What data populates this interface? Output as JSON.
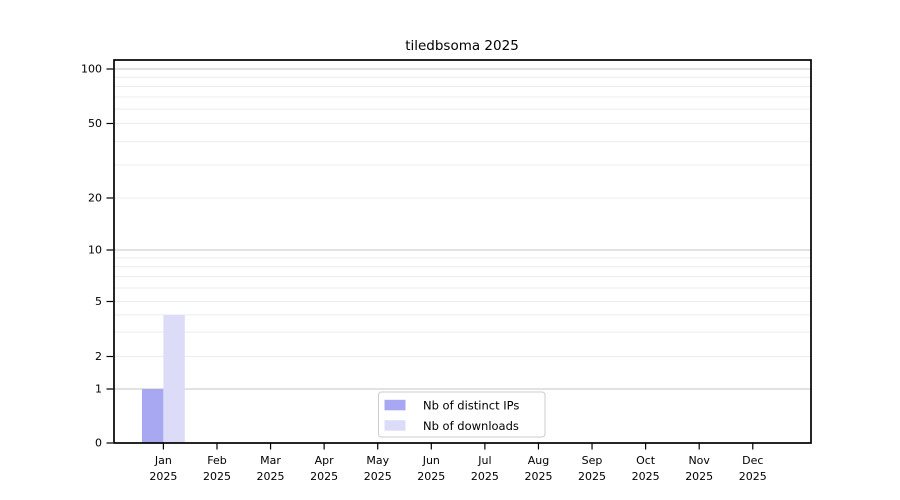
{
  "chart_data": {
    "type": "bar",
    "title": "tiledbsoma 2025",
    "categories": [
      "Jan 2025",
      "Feb 2025",
      "Mar 2025",
      "Apr 2025",
      "May 2025",
      "Jun 2025",
      "Jul 2025",
      "Aug 2025",
      "Sep 2025",
      "Oct 2025",
      "Nov 2025",
      "Dec 2025"
    ],
    "series": [
      {
        "name": "Nb of distinct IPs",
        "color": "#a8a8f2",
        "values": [
          1,
          0,
          0,
          0,
          0,
          0,
          0,
          0,
          0,
          0,
          0,
          0
        ]
      },
      {
        "name": "Nb of downloads",
        "color": "#dcdcf8",
        "values": [
          4,
          0,
          0,
          0,
          0,
          0,
          0,
          0,
          0,
          0,
          0,
          0
        ]
      }
    ],
    "xlabel": "",
    "ylabel": "",
    "yscale": "symlog-like (linear 0-1, log 1-100)",
    "ylim": [
      0,
      115
    ],
    "ytick_labels": [
      0,
      1,
      2,
      5,
      10,
      20,
      50,
      100
    ],
    "y_major_gridlines": [
      1,
      10,
      100
    ],
    "y_minor_gridlines": [
      2,
      3,
      4,
      5,
      6,
      7,
      8,
      9,
      20,
      30,
      40,
      50,
      60,
      70,
      80,
      90
    ],
    "grid": true,
    "legend": {
      "position": "inside-bottom-center"
    },
    "colors": {
      "grid_minor": "#ececec",
      "grid_major": "#c6c6c6",
      "axis": "#000000",
      "text": "#000000",
      "legend_border": "#cccccc",
      "background": "#ffffff"
    }
  }
}
